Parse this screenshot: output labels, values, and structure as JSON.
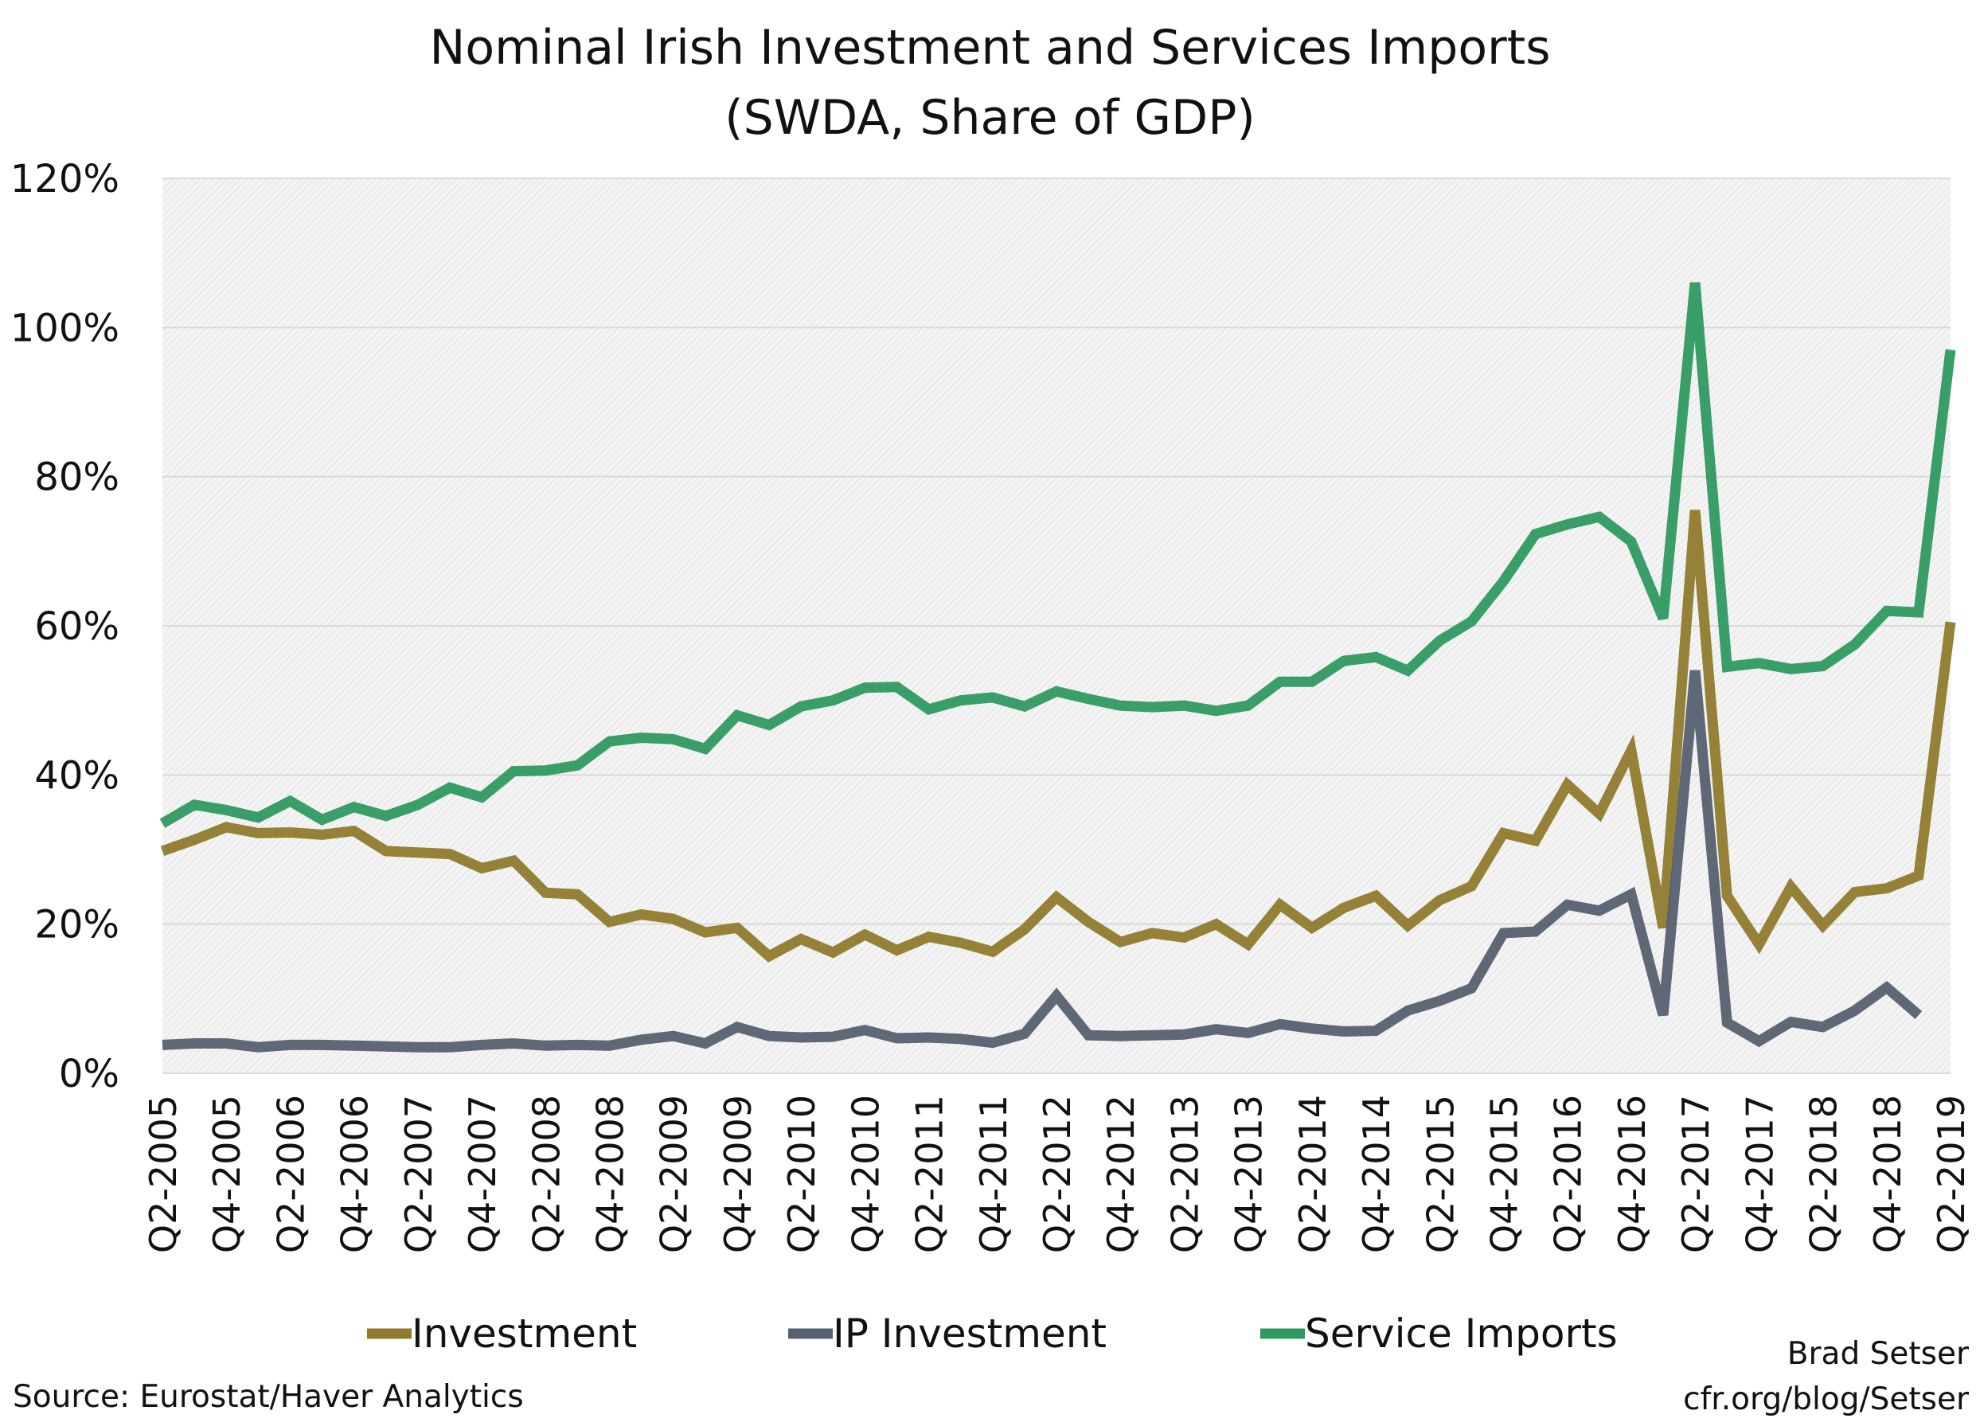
{
  "chart_data": {
    "type": "line",
    "title": "Nominal Irish Investment and Services Imports",
    "subtitle": "(SWDA, Share of GDP)",
    "xlabel": "",
    "ylabel": "",
    "ylim": [
      0,
      120
    ],
    "yticks": [
      "0%",
      "20%",
      "40%",
      "60%",
      "80%",
      "100%",
      "120%"
    ],
    "grid": true,
    "legend_placement": "bottom",
    "x": [
      "Q2-2005",
      "Q3-2005",
      "Q4-2005",
      "Q1-2006",
      "Q2-2006",
      "Q3-2006",
      "Q4-2006",
      "Q1-2007",
      "Q2-2007",
      "Q3-2007",
      "Q4-2007",
      "Q1-2008",
      "Q2-2008",
      "Q3-2008",
      "Q4-2008",
      "Q1-2009",
      "Q2-2009",
      "Q3-2009",
      "Q4-2009",
      "Q1-2010",
      "Q2-2010",
      "Q3-2010",
      "Q4-2010",
      "Q1-2011",
      "Q2-2011",
      "Q3-2011",
      "Q4-2011",
      "Q1-2012",
      "Q2-2012",
      "Q3-2012",
      "Q4-2012",
      "Q1-2013",
      "Q2-2013",
      "Q3-2013",
      "Q4-2013",
      "Q1-2014",
      "Q2-2014",
      "Q3-2014",
      "Q4-2014",
      "Q1-2015",
      "Q2-2015",
      "Q3-2015",
      "Q4-2015",
      "Q1-2016",
      "Q2-2016",
      "Q3-2016",
      "Q4-2016",
      "Q1-2017",
      "Q2-2017",
      "Q3-2017",
      "Q4-2017",
      "Q1-2018",
      "Q2-2018",
      "Q3-2018",
      "Q4-2018",
      "Q1-2019",
      "Q2-2019"
    ],
    "xtick_labels": [
      "Q2-2005",
      "Q4-2005",
      "Q2-2006",
      "Q4-2006",
      "Q2-2007",
      "Q4-2007",
      "Q2-2008",
      "Q4-2008",
      "Q2-2009",
      "Q4-2009",
      "Q2-2010",
      "Q4-2010",
      "Q2-2011",
      "Q4-2011",
      "Q2-2012",
      "Q4-2012",
      "Q2-2013",
      "Q4-2013",
      "Q2-2014",
      "Q4-2014",
      "Q2-2015",
      "Q4-2015",
      "Q2-2016",
      "Q4-2016",
      "Q2-2017",
      "Q4-2017",
      "Q2-2018",
      "Q4-2018",
      "Q2-2019"
    ],
    "series": [
      {
        "name": "Investment",
        "color": "#8f7a2d",
        "values": [
          29.8,
          31.3,
          33,
          32.2,
          32.3,
          32,
          32.5,
          29.8,
          29.6,
          29.4,
          27.5,
          28.5,
          24.2,
          24,
          20.3,
          21.3,
          20.7,
          18.9,
          19.5,
          15.7,
          18,
          16.2,
          18.6,
          16.5,
          18.3,
          17.5,
          16.3,
          19.3,
          23.6,
          20.3,
          17.6,
          18.8,
          18.2,
          20,
          17.3,
          22.6,
          19.5,
          22.2,
          23.8,
          19.8,
          23.2,
          25.1,
          32.2,
          31.2,
          38.7,
          34.8,
          43.3,
          19.5,
          75.5,
          23.8,
          17.3,
          25,
          19.8,
          24.3,
          24.8,
          26.5,
          60.5
        ]
      },
      {
        "name": "IP Investment",
        "color": "#566070",
        "values": [
          3.8,
          4,
          4,
          3.5,
          3.8,
          3.8,
          3.7,
          3.6,
          3.5,
          3.5,
          3.8,
          4,
          3.7,
          3.8,
          3.7,
          4.5,
          5,
          4,
          6.2,
          5,
          4.8,
          4.9,
          5.8,
          4.7,
          4.8,
          4.6,
          4.1,
          5.3,
          10.4,
          5.1,
          5,
          5.1,
          5.2,
          5.9,
          5.4,
          6.6,
          6,
          5.6,
          5.7,
          8.4,
          9.7,
          11.4,
          18.8,
          19,
          22.6,
          21.8,
          24,
          7.8,
          54,
          6.8,
          4.3,
          6.9,
          6.2,
          8.4,
          11.5,
          7.8,
          null
        ]
      },
      {
        "name": "Service Imports",
        "color": "#2e9960",
        "values": [
          33.5,
          36,
          35.3,
          34.3,
          36.5,
          34,
          35.7,
          34.5,
          36,
          38.3,
          37,
          40.5,
          40.6,
          41.3,
          44.5,
          45,
          44.8,
          43.5,
          48,
          46.7,
          49.2,
          50,
          51.7,
          51.8,
          48.8,
          50,
          50.4,
          49.2,
          51.2,
          50.2,
          49.3,
          49.1,
          49.3,
          48.6,
          49.3,
          52.5,
          52.5,
          55.3,
          55.8,
          54,
          58,
          60.6,
          66,
          72.3,
          73.6,
          74.6,
          71.3,
          61,
          106,
          54.5,
          55,
          54.2,
          54.6,
          57.5,
          62,
          61.8,
          97
        ]
      }
    ]
  },
  "footer": {
    "source": "Source: Eurostat/Haver Analytics",
    "author": "Brad Setser",
    "url": "cfr.org/blog/Setser"
  }
}
